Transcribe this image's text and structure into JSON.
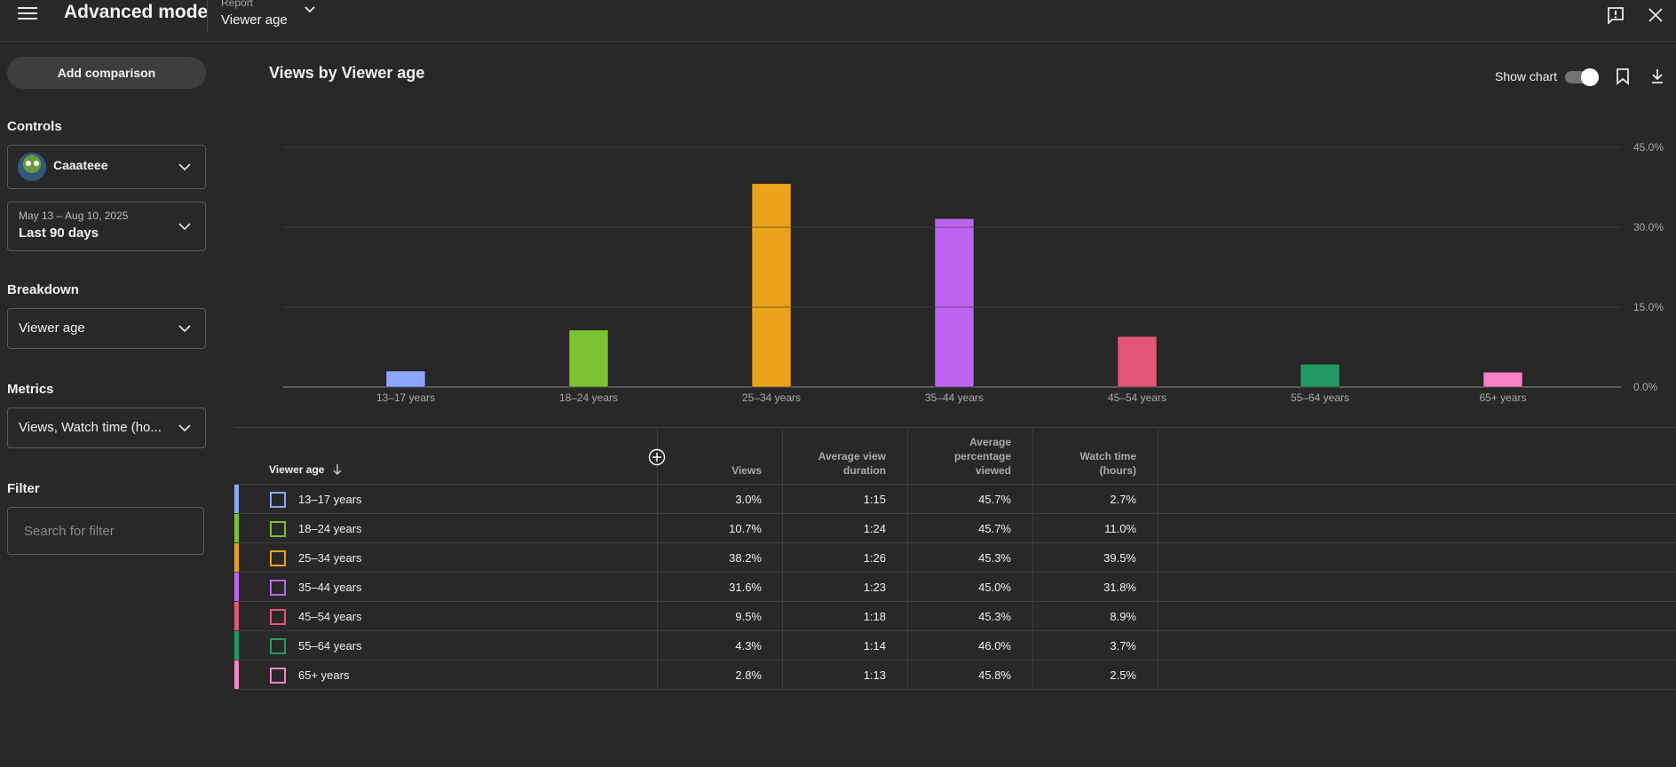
{
  "header": {
    "app_title": "Advanced mode",
    "report_caption": "Report",
    "report_value": "Viewer age",
    "icons": {
      "menu": "hamburger-icon",
      "report_dropdown": "chevron-down-icon",
      "feedback": "feedback-icon",
      "close": "close-icon"
    }
  },
  "sidebar": {
    "add_comparison_label": "Add comparison",
    "controls_label": "Controls",
    "channel_name": "Caaateee",
    "date_range_small": "May 13 – Aug 10, 2025",
    "date_range_label": "Last 90 days",
    "breakdown_label": "Breakdown",
    "breakdown_value": "Viewer age",
    "metrics_label": "Metrics",
    "metrics_value": "Views, Watch time (ho...",
    "filter_label": "Filter",
    "filter_placeholder": "Search for filter"
  },
  "main": {
    "title": "Views by Viewer age",
    "show_chart_label": "Show chart",
    "show_chart_on": true
  },
  "chart_data": {
    "type": "bar",
    "title": "Views by Viewer age",
    "categories": [
      "13–17 years",
      "18–24 years",
      "25–34 years",
      "35–44 years",
      "45–54 years",
      "55–64 years",
      "65+ years"
    ],
    "values": [
      3.0,
      10.7,
      38.2,
      31.6,
      9.5,
      4.3,
      2.8
    ],
    "colors": [
      "#8ea6ff",
      "#7cc231",
      "#eba21c",
      "#bd65f2",
      "#e2567a",
      "#249a63",
      "#f681c4"
    ],
    "ylim": [
      0,
      45
    ],
    "yticks": [
      "0.0%",
      "15.0%",
      "30.0%",
      "45.0%"
    ],
    "ytick_values": [
      0,
      15,
      30,
      45
    ],
    "grid": true
  },
  "table": {
    "headers": {
      "dimension": "Viewer age",
      "views": "Views",
      "avg_view_duration": [
        "Average view",
        "duration"
      ],
      "avg_pct_viewed": [
        "Average",
        "percentage",
        "viewed"
      ],
      "watch_time": [
        "Watch time",
        "(hours)"
      ]
    },
    "rows": [
      {
        "label": "13–17 years",
        "views": "3.0%",
        "avd": "1:15",
        "apv": "45.7%",
        "wt": "2.7%",
        "color": "#8ea6ff"
      },
      {
        "label": "18–24 years",
        "views": "10.7%",
        "avd": "1:24",
        "apv": "45.7%",
        "wt": "11.0%",
        "color": "#7cc231"
      },
      {
        "label": "25–34 years",
        "views": "38.2%",
        "avd": "1:26",
        "apv": "45.3%",
        "wt": "39.5%",
        "color": "#eba21c"
      },
      {
        "label": "35–44 years",
        "views": "31.6%",
        "avd": "1:23",
        "apv": "45.0%",
        "wt": "31.8%",
        "color": "#bd65f2"
      },
      {
        "label": "45–54 years",
        "views": "9.5%",
        "avd": "1:18",
        "apv": "45.3%",
        "wt": "8.9%",
        "color": "#e2567a"
      },
      {
        "label": "55–64 years",
        "views": "4.3%",
        "avd": "1:14",
        "apv": "46.0%",
        "wt": "3.7%",
        "color": "#249a63"
      },
      {
        "label": "65+ years",
        "views": "2.8%",
        "avd": "1:13",
        "apv": "45.8%",
        "wt": "2.5%",
        "color": "#f681c4"
      }
    ]
  }
}
